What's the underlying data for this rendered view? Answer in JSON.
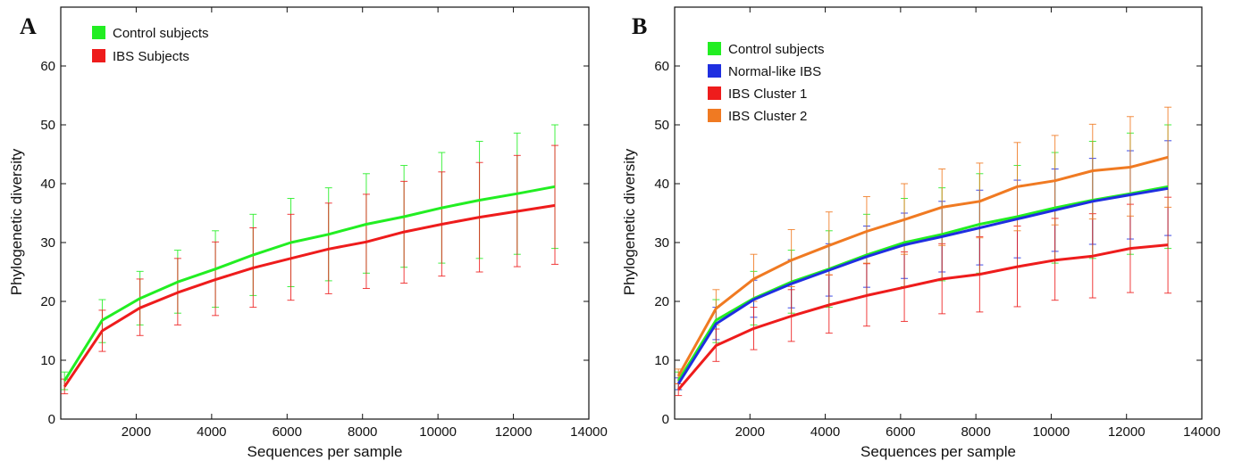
{
  "colors": {
    "green": "#22ee22",
    "red": "#ee1c1c",
    "blue": "#1f2fe0",
    "orange": "#f07a22",
    "axis": "#111111"
  },
  "chart_data": [
    {
      "type": "line",
      "panel_label": "A",
      "xlabel": "Sequences per sample",
      "ylabel": "Phylogenetic diversity",
      "xlim": [
        0,
        14000
      ],
      "ylim": [
        0,
        70
      ],
      "xticks": [
        "2000",
        "4000",
        "6000",
        "8000",
        "10000",
        "12000",
        "14000"
      ],
      "yticks": [
        "0",
        "10",
        "20",
        "30",
        "40",
        "50",
        "60"
      ],
      "legend_position": "top-left",
      "x": [
        100,
        1100,
        2100,
        3100,
        4100,
        5100,
        6100,
        7100,
        8100,
        9100,
        10100,
        11100,
        12100,
        13100
      ],
      "series": [
        {
          "name": "Control subjects",
          "color": "#22ee22",
          "values": [
            6.5,
            16.8,
            20.5,
            23.3,
            25.5,
            27.9,
            30.0,
            31.4,
            33.1,
            34.4,
            35.9,
            37.2,
            38.3,
            39.5
          ],
          "error_low": [
            5.0,
            13.0,
            16.0,
            18.0,
            19.0,
            21.0,
            22.5,
            23.5,
            24.8,
            25.8,
            26.5,
            27.3,
            28.0,
            29.0
          ],
          "error_high": [
            8.0,
            20.3,
            25.1,
            28.7,
            32.0,
            34.8,
            37.5,
            39.3,
            41.7,
            43.1,
            45.3,
            47.2,
            48.6,
            50.0
          ]
        },
        {
          "name": "IBS Subjects",
          "color": "#ee1c1c",
          "values": [
            5.5,
            15.0,
            18.9,
            21.5,
            23.7,
            25.7,
            27.3,
            28.9,
            30.1,
            31.8,
            33.1,
            34.3,
            35.3,
            36.3
          ],
          "error_low": [
            4.3,
            11.5,
            14.2,
            16.0,
            17.6,
            19.0,
            20.2,
            21.3,
            22.2,
            23.1,
            24.3,
            25.0,
            25.9,
            26.3
          ],
          "error_high": [
            6.8,
            18.5,
            23.8,
            27.3,
            30.1,
            32.5,
            34.8,
            36.7,
            38.2,
            40.4,
            42.0,
            43.6,
            44.8,
            46.5
          ]
        }
      ]
    },
    {
      "type": "line",
      "panel_label": "B",
      "xlabel": "Sequences per sample",
      "ylabel": "Phylogenetic diversity",
      "xlim": [
        0,
        14000
      ],
      "ylim": [
        0,
        70
      ],
      "xticks": [
        "2000",
        "4000",
        "6000",
        "8000",
        "10000",
        "12000",
        "14000"
      ],
      "yticks": [
        "0",
        "10",
        "20",
        "30",
        "40",
        "50",
        "60"
      ],
      "legend_position": "top-left",
      "x": [
        100,
        1100,
        2100,
        3100,
        4100,
        5100,
        6100,
        7100,
        8100,
        9100,
        10100,
        11100,
        12100,
        13100
      ],
      "series": [
        {
          "name": "Control subjects",
          "color": "#22ee22",
          "values": [
            6.5,
            16.8,
            20.5,
            23.3,
            25.5,
            27.9,
            30.0,
            31.4,
            33.1,
            34.4,
            35.9,
            37.2,
            38.3,
            39.5
          ],
          "error_low": [
            5.0,
            13.0,
            16.0,
            18.0,
            19.0,
            21.0,
            22.5,
            23.5,
            24.8,
            25.8,
            26.5,
            27.3,
            28.0,
            29.0
          ],
          "error_high": [
            8.0,
            20.3,
            25.1,
            28.7,
            32.0,
            34.8,
            37.5,
            39.3,
            41.7,
            43.1,
            45.3,
            47.2,
            48.6,
            50.0
          ]
        },
        {
          "name": "Normal-like IBS",
          "color": "#1f2fe0",
          "values": [
            6.0,
            16.2,
            20.3,
            23.0,
            25.3,
            27.6,
            29.6,
            31.0,
            32.5,
            34.0,
            35.5,
            37.0,
            38.1,
            39.2
          ],
          "error_low": [
            5.0,
            13.5,
            17.3,
            18.9,
            20.9,
            22.4,
            23.9,
            25.0,
            26.2,
            27.4,
            28.5,
            29.7,
            30.6,
            31.2
          ],
          "error_high": [
            7.0,
            19.0,
            23.6,
            27.1,
            29.8,
            32.8,
            35.0,
            37.0,
            38.9,
            40.6,
            42.5,
            44.3,
            45.6,
            47.3
          ]
        },
        {
          "name": "IBS Cluster 1",
          "color": "#ee1c1c",
          "values": [
            5.0,
            12.5,
            15.4,
            17.5,
            19.4,
            21.0,
            22.4,
            23.8,
            24.6,
            25.9,
            27.0,
            27.7,
            29.0,
            29.6
          ],
          "error_low": [
            4.0,
            9.8,
            11.8,
            13.2,
            14.6,
            15.8,
            16.6,
            17.9,
            18.2,
            19.1,
            20.2,
            20.6,
            21.5,
            21.4
          ],
          "error_high": [
            6.0,
            15.3,
            19.0,
            22.0,
            24.5,
            26.4,
            28.4,
            29.8,
            31.0,
            32.8,
            34.1,
            34.9,
            36.5,
            37.7
          ]
        },
        {
          "name": "IBS Cluster 2",
          "color": "#f07a22",
          "values": [
            7.3,
            18.8,
            23.8,
            27.0,
            29.5,
            31.9,
            33.9,
            36.0,
            37.0,
            39.5,
            40.5,
            42.2,
            42.8,
            44.5
          ],
          "error_low": [
            6.0,
            16.0,
            20.0,
            22.5,
            24.5,
            26.5,
            28.0,
            29.5,
            30.8,
            32.0,
            33.0,
            34.0,
            34.5,
            36.0
          ],
          "error_high": [
            8.5,
            22.0,
            28.0,
            32.2,
            35.2,
            37.8,
            40.0,
            42.5,
            43.5,
            47.0,
            48.2,
            50.1,
            51.4,
            53.0
          ]
        }
      ]
    }
  ]
}
